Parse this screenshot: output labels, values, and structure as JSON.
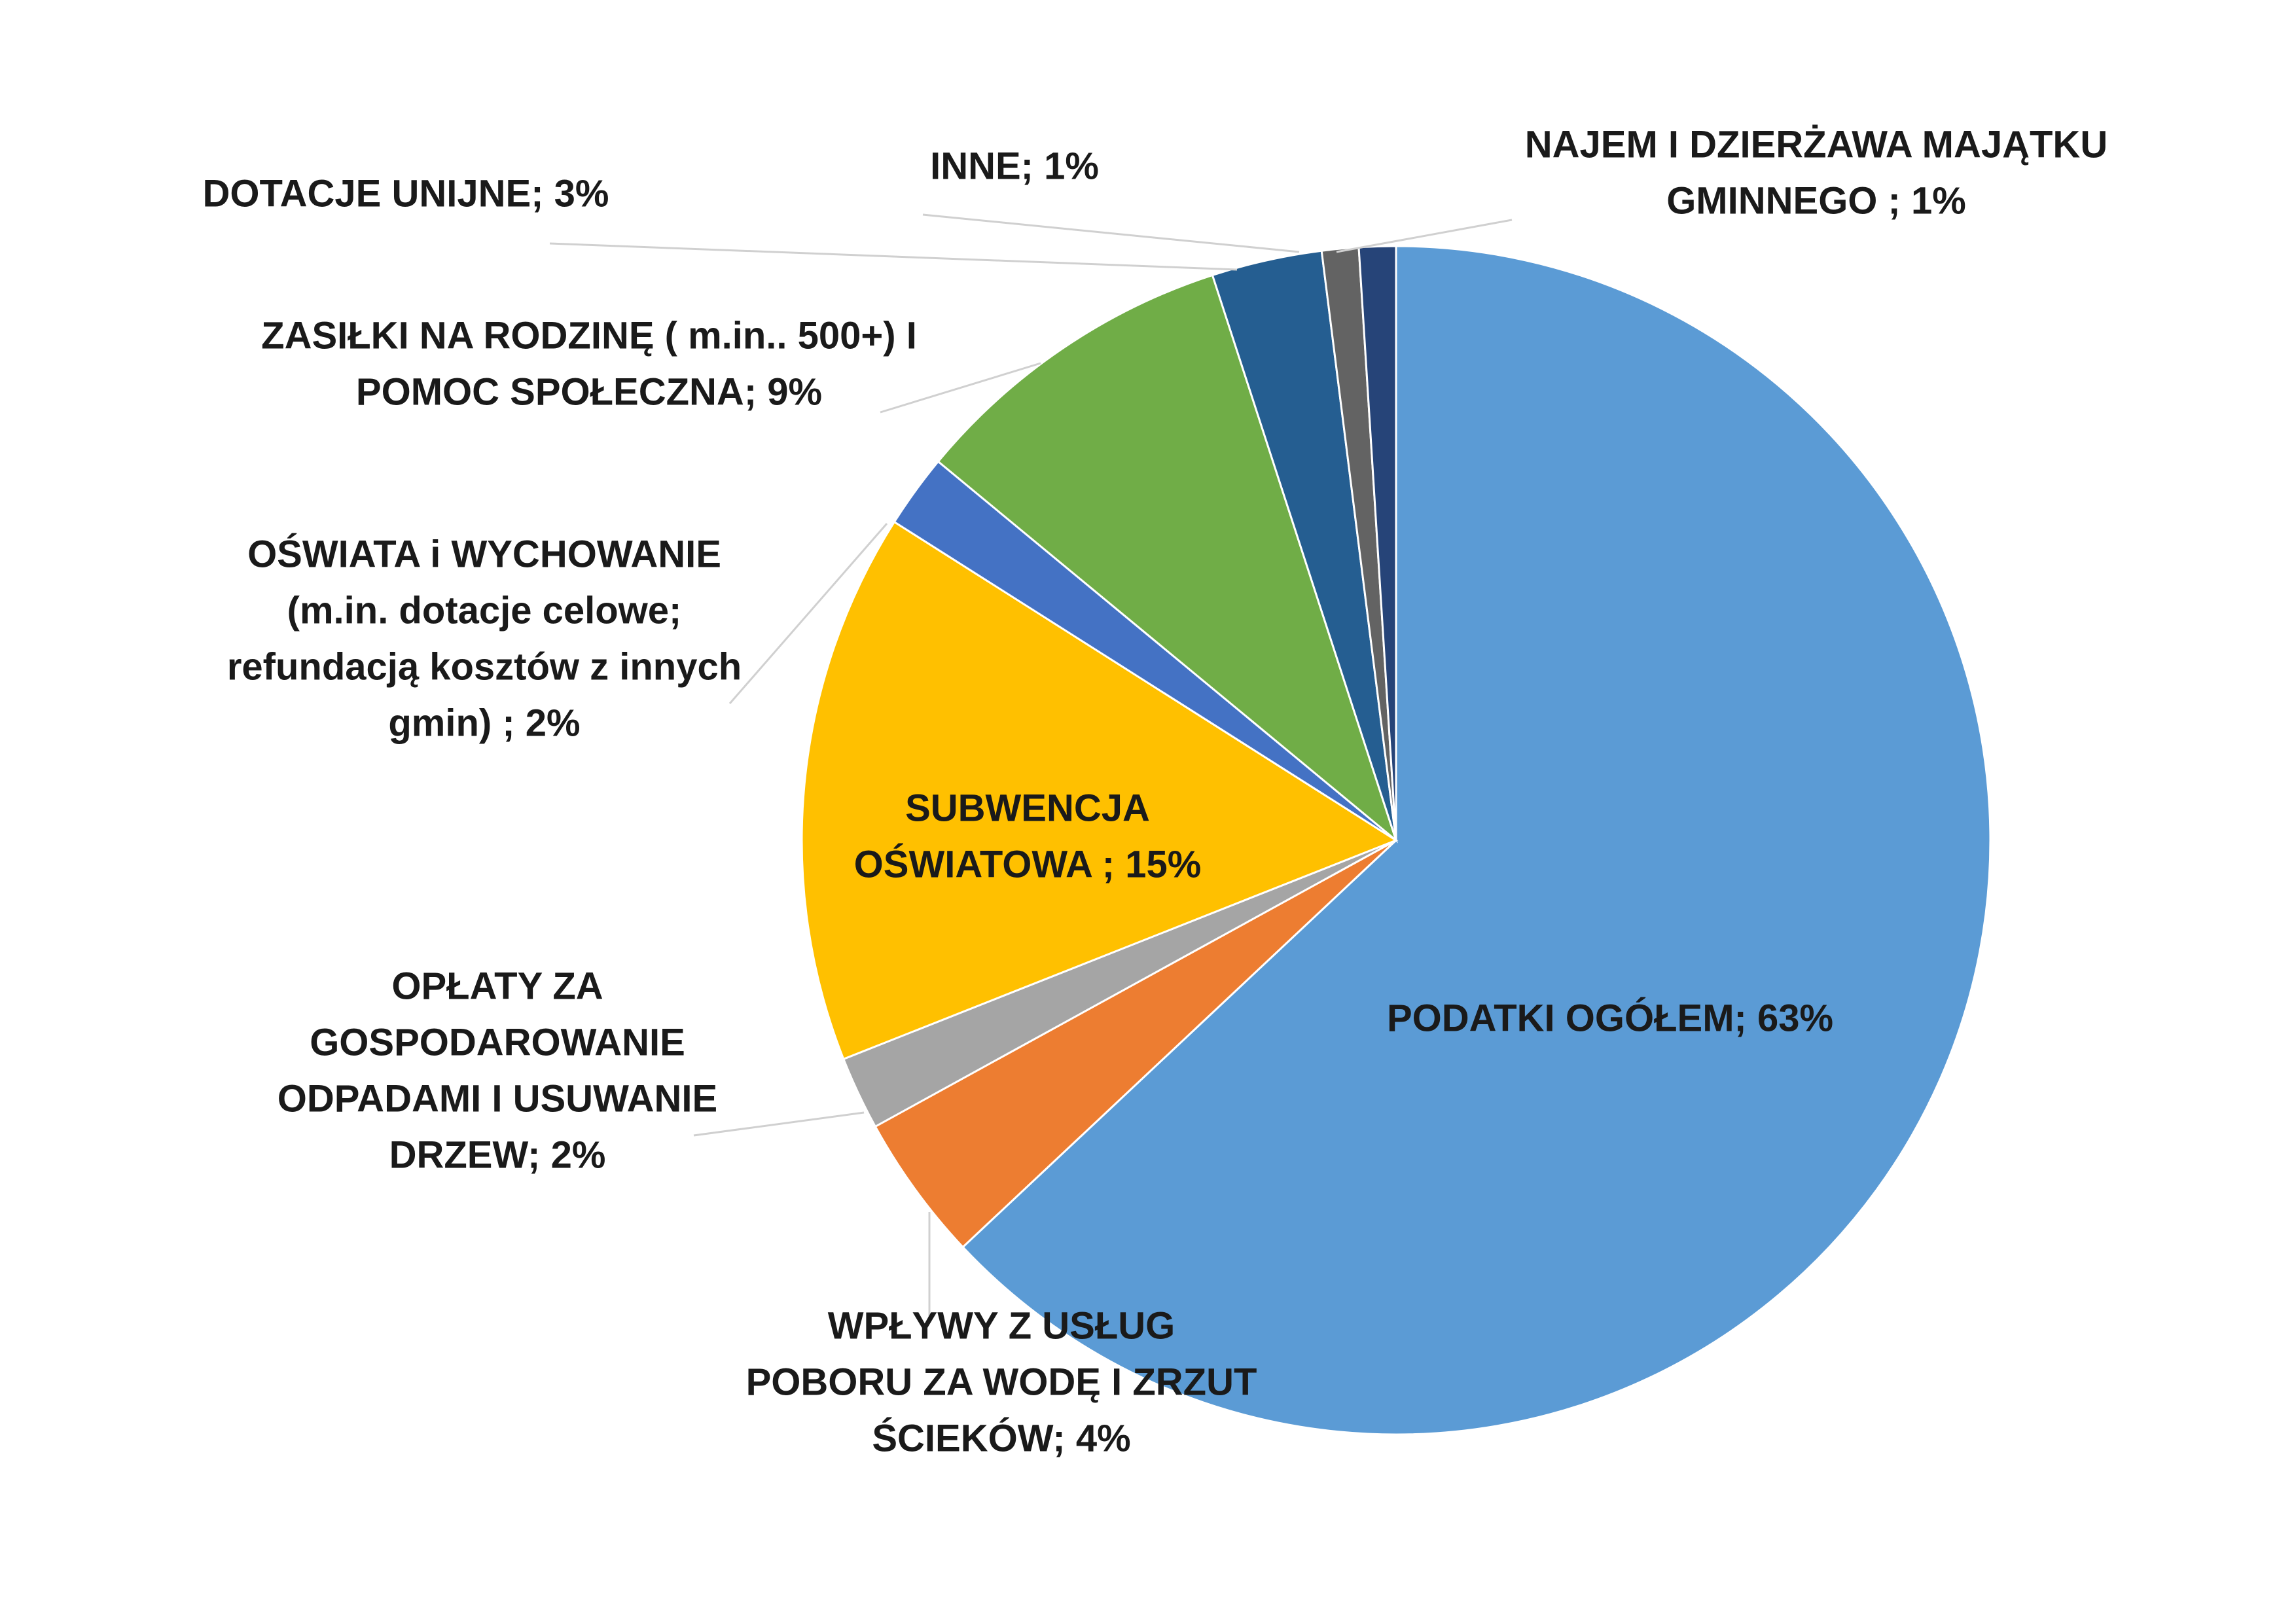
{
  "chart_data": {
    "type": "pie",
    "title": "",
    "start_angle_deg": 0,
    "direction": "clockwise",
    "legend": "none",
    "slices": [
      {
        "name": "PODATKI OGÓŁEM",
        "value": 63,
        "label_lines": [
          "PODATKI OGÓŁEM; 63%"
        ],
        "color": "#5b9bd5"
      },
      {
        "name": "WPŁYWY Z USŁUG POBORU ZA WODĘ I ZRZUT ŚCIEKÓW",
        "value": 4,
        "label_lines": [
          "WPŁYWY Z USŁUG",
          "POBORU ZA WODĘ I ZRZUT",
          "ŚCIEKÓW; 4%"
        ],
        "color": "#ed7d31"
      },
      {
        "name": "OPŁATY ZA GOSPODAROWANIE ODPADAMI I USUWANIE DRZEW",
        "value": 2,
        "label_lines": [
          "OPŁATY ZA",
          "GOSPODAROWANIE",
          "ODPADAMI I USUWANIE",
          "DRZEW; 2%"
        ],
        "color": "#a5a5a5"
      },
      {
        "name": "SUBWENCJA OŚWIATOWA",
        "value": 15,
        "label_lines": [
          "SUBWENCJA",
          "OŚWIATOWA ; 15%"
        ],
        "color": "#ffc000"
      },
      {
        "name": "OŚWIATA i WYCHOWANIE (m.in. dotacje celowe; refundacją kosztów z innych gmin)",
        "value": 2,
        "label_lines": [
          "OŚWIATA i WYCHOWANIE",
          "(m.in. dotacje celowe;",
          "refundacją kosztów z innych",
          "gmin) ; 2%"
        ],
        "color": "#4472c4"
      },
      {
        "name": "ZASIŁKI NA RODZINĘ ( m.in.. 500+) I POMOC SPOŁECZNA",
        "value": 9,
        "label_lines": [
          "ZASIŁKI NA RODZINĘ ( m.in.. 500+)  I",
          "POMOC SPOŁECZNA; 9%"
        ],
        "color": "#70ad47"
      },
      {
        "name": "DOTACJE UNIJNE",
        "value": 3,
        "label_lines": [
          "DOTACJE UNIJNE; 3%"
        ],
        "color": "#255e91"
      },
      {
        "name": "INNE",
        "value": 1,
        "label_lines": [
          "INNE; 1%"
        ],
        "color": "#636363"
      },
      {
        "name": "NAJEM I DZIERŻAWA MAJĄTKU GMINNEGO",
        "value": 1,
        "label_lines": [
          "NAJEM I DZIERŻAWA MAJĄTKU",
          "GMINNEGO ;  1%"
        ],
        "color": "#264478"
      }
    ]
  }
}
